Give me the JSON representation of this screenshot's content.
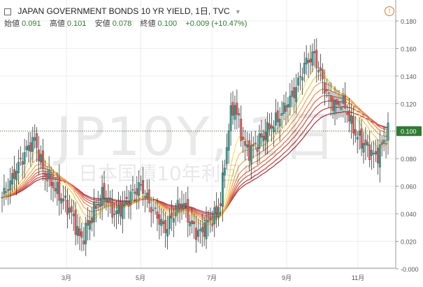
{
  "header": {
    "title": "JAPAN GOVERNMENT BONDS 10 YR YIELD, 1日, TVC",
    "ohlc": [
      {
        "label": "始値",
        "value": "0.091"
      },
      {
        "label": "高値",
        "value": "0.101"
      },
      {
        "label": "安値",
        "value": "0.078"
      },
      {
        "label": "終値",
        "value": "0.100"
      }
    ],
    "change": "+0.009 (+10.47%)",
    "alert_glyph": "!"
  },
  "watermark": {
    "symbol": "JP10Y, 1日",
    "name": "日本国債10年利回り"
  },
  "chart_data": {
    "type": "candlestick",
    "x_ticks": [
      "3月",
      "5月",
      "7月",
      "9月",
      "11月"
    ],
    "y_ticks": [
      "0.180",
      "0.160",
      "0.140",
      "0.120",
      "0.100",
      "0.080",
      "0.060",
      "0.040",
      "0.020",
      "-0.000"
    ],
    "ylim": [
      0.0,
      0.18
    ],
    "last_price": "0.100",
    "closes": [
      0.052,
      0.058,
      0.064,
      0.072,
      0.078,
      0.085,
      0.09,
      0.094,
      0.082,
      0.07,
      0.066,
      0.06,
      0.056,
      0.05,
      0.046,
      0.04,
      0.03,
      0.02,
      0.028,
      0.036,
      0.044,
      0.05,
      0.055,
      0.048,
      0.04,
      0.042,
      0.046,
      0.05,
      0.055,
      0.058,
      0.06,
      0.052,
      0.045,
      0.04,
      0.035,
      0.028,
      0.034,
      0.04,
      0.046,
      0.048,
      0.038,
      0.03,
      0.026,
      0.028,
      0.032,
      0.036,
      0.04,
      0.05,
      0.08,
      0.11,
      0.12,
      0.105,
      0.09,
      0.085,
      0.088,
      0.092,
      0.096,
      0.1,
      0.104,
      0.108,
      0.112,
      0.118,
      0.124,
      0.13,
      0.138,
      0.148,
      0.152,
      0.156,
      0.146,
      0.136,
      0.126,
      0.12,
      0.118,
      0.122,
      0.116,
      0.106,
      0.098,
      0.094,
      0.09,
      0.086,
      0.082,
      0.084,
      0.092,
      0.1
    ],
    "ribbons": [
      {
        "color": "#f5e36b",
        "period": 5
      },
      {
        "color": "#f3c85e",
        "period": 8
      },
      {
        "color": "#efab58",
        "period": 11
      },
      {
        "color": "#e88f54",
        "period": 14
      },
      {
        "color": "#df7452",
        "period": 17
      },
      {
        "color": "#d35b4e",
        "period": 20
      },
      {
        "color": "#c4464a",
        "period": 24
      },
      {
        "color": "#b23a43",
        "period": 28
      }
    ],
    "colors": {
      "up": "#26a69a",
      "down": "#ef5350",
      "wick": "#333333",
      "grid": "#eeeeee",
      "price_line": "#2e7d32"
    }
  }
}
